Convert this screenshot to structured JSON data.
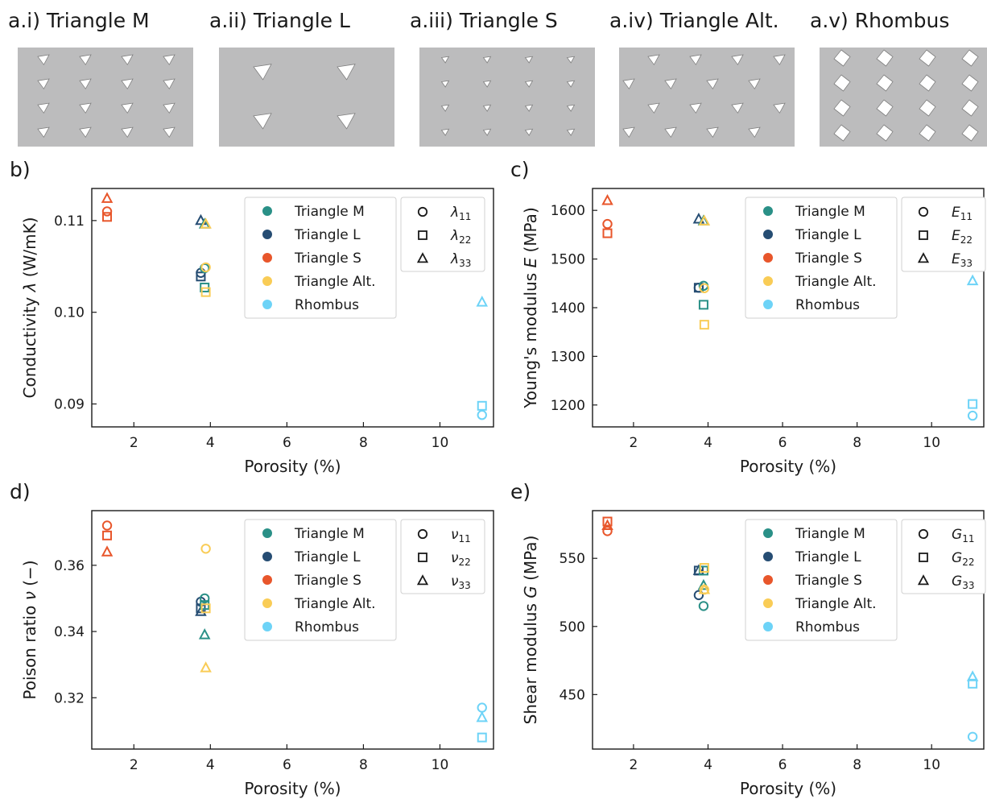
{
  "panels": [
    {
      "label": "a.i) Triangle M",
      "pattern": "tri-m"
    },
    {
      "label": "a.ii) Triangle L",
      "pattern": "tri-l"
    },
    {
      "label": "a.iii) Triangle S",
      "pattern": "tri-s"
    },
    {
      "label": "a.iv) Triangle Alt.",
      "pattern": "tri-alt"
    },
    {
      "label": "a.v) Rhombus",
      "pattern": "rhombus"
    }
  ],
  "colors": {
    "Triangle M": "#2a9087",
    "Triangle L": "#264d73",
    "Triangle S": "#e8562b",
    "Triangle Alt.": "#f9cc56",
    "Rhombus": "#6dd3f7",
    "panel_bg": "#bcbcbd"
  },
  "legend_materials": [
    "Triangle M",
    "Triangle L",
    "Triangle S",
    "Triangle Alt.",
    "Rhombus"
  ],
  "chart_data": [
    {
      "id": "b",
      "type": "scatter",
      "panel_label": "b)",
      "xlabel": "Porosity (%)",
      "ylabel_parts": [
        "Conductivity ",
        "λ",
        " (W/mK)"
      ],
      "xlim": [
        0.9,
        11.4
      ],
      "ylim": [
        0.0875,
        0.1135
      ],
      "xticks": [
        2,
        4,
        6,
        8,
        10
      ],
      "yticks": [
        0.09,
        0.1,
        0.11
      ],
      "ytick_labels": [
        "0.09",
        "0.10",
        "0.11"
      ],
      "component_legend": [
        {
          "symbol": "λ",
          "sub": "11",
          "marker": "circle"
        },
        {
          "symbol": "λ",
          "sub": "22",
          "marker": "square"
        },
        {
          "symbol": "λ",
          "sub": "33",
          "marker": "triangle"
        }
      ],
      "series": [
        {
          "name": "Triangle S",
          "x": 1.3,
          "circle": 0.111,
          "square": 0.1104,
          "triangle": 0.1124
        },
        {
          "name": "Triangle L",
          "x": 3.75,
          "circle": 0.1043,
          "square": 0.1039,
          "triangle": 0.11
        },
        {
          "name": "Triangle M",
          "x": 3.85,
          "circle": 0.1048,
          "square": 0.1027,
          "triangle": 0.1096
        },
        {
          "name": "Triangle Alt.",
          "x": 3.88,
          "circle": 0.1049,
          "square": 0.1022,
          "triangle": 0.1096
        },
        {
          "name": "Rhombus",
          "x": 11.1,
          "circle": 0.0888,
          "square": 0.0898,
          "triangle": 0.1011
        }
      ]
    },
    {
      "id": "c",
      "type": "scatter",
      "panel_label": "c)",
      "xlabel": "Porosity (%)",
      "ylabel_parts": [
        "Young's modulus ",
        "E",
        " (MPa)"
      ],
      "xlim": [
        0.9,
        11.4
      ],
      "ylim": [
        1155,
        1645
      ],
      "xticks": [
        2,
        4,
        6,
        8,
        10
      ],
      "yticks": [
        1200,
        1300,
        1400,
        1500,
        1600
      ],
      "ytick_labels": [
        "1200",
        "1300",
        "1400",
        "1500",
        "1600"
      ],
      "component_legend": [
        {
          "symbol": "E",
          "sub": "11",
          "marker": "circle"
        },
        {
          "symbol": "E",
          "sub": "22",
          "marker": "square"
        },
        {
          "symbol": "E",
          "sub": "33",
          "marker": "triangle"
        }
      ],
      "series": [
        {
          "name": "Triangle S",
          "x": 1.3,
          "circle": 1572,
          "square": 1553,
          "triangle": 1620
        },
        {
          "name": "Triangle L",
          "x": 3.75,
          "circle": 1441,
          "square": 1441,
          "triangle": 1582
        },
        {
          "name": "Triangle M",
          "x": 3.88,
          "circle": 1445,
          "square": 1406,
          "triangle": 1578
        },
        {
          "name": "Triangle Alt.",
          "x": 3.9,
          "circle": 1440,
          "square": 1365,
          "triangle": 1578
        },
        {
          "name": "Rhombus",
          "x": 11.1,
          "circle": 1178,
          "square": 1202,
          "triangle": 1455
        }
      ]
    },
    {
      "id": "d",
      "type": "scatter",
      "panel_label": "d)",
      "xlabel": "Porosity (%)",
      "ylabel_parts": [
        "Poison ratio ",
        "ν",
        " (−)"
      ],
      "xlim": [
        0.9,
        11.4
      ],
      "ylim": [
        0.3045,
        0.3765
      ],
      "xticks": [
        2,
        4,
        6,
        8,
        10
      ],
      "yticks": [
        0.32,
        0.34,
        0.36
      ],
      "ytick_labels": [
        "0.32",
        "0.34",
        "0.36"
      ],
      "component_legend": [
        {
          "symbol": "ν",
          "sub": "11",
          "marker": "circle"
        },
        {
          "symbol": "ν",
          "sub": "22",
          "marker": "square"
        },
        {
          "symbol": "ν",
          "sub": "33",
          "marker": "triangle"
        }
      ],
      "series": [
        {
          "name": "Triangle S",
          "x": 1.3,
          "circle": 0.372,
          "square": 0.369,
          "triangle": 0.364
        },
        {
          "name": "Triangle L",
          "x": 3.75,
          "circle": 0.349,
          "square": 0.347,
          "triangle": 0.346
        },
        {
          "name": "Triangle M",
          "x": 3.85,
          "circle": 0.35,
          "square": 0.348,
          "triangle": 0.339
        },
        {
          "name": "Triangle Alt.",
          "x": 3.88,
          "circle": 0.365,
          "square": 0.347,
          "triangle": 0.329
        },
        {
          "name": "Rhombus",
          "x": 11.1,
          "circle": 0.317,
          "square": 0.308,
          "triangle": 0.314
        }
      ]
    },
    {
      "id": "e",
      "type": "scatter",
      "panel_label": "e)",
      "xlabel": "Porosity (%)",
      "ylabel_parts": [
        "Shear modulus ",
        "G",
        " (MPa)"
      ],
      "xlim": [
        0.9,
        11.4
      ],
      "ylim": [
        410,
        585
      ],
      "xticks": [
        2,
        4,
        6,
        8,
        10
      ],
      "yticks": [
        450,
        500,
        550
      ],
      "ytick_labels": [
        "450",
        "500",
        "550"
      ],
      "component_legend": [
        {
          "symbol": "G",
          "sub": "11",
          "marker": "circle"
        },
        {
          "symbol": "G",
          "sub": "22",
          "marker": "square"
        },
        {
          "symbol": "G",
          "sub": "33",
          "marker": "triangle"
        }
      ],
      "series": [
        {
          "name": "Triangle S",
          "x": 1.3,
          "circle": 570,
          "square": 577,
          "triangle": 574
        },
        {
          "name": "Triangle L",
          "x": 3.75,
          "circle": 523,
          "square": 541,
          "triangle": 541
        },
        {
          "name": "Triangle M",
          "x": 3.88,
          "circle": 515,
          "square": 541,
          "triangle": 530
        },
        {
          "name": "Triangle Alt.",
          "x": 3.9,
          "circle": 527,
          "square": 543,
          "triangle": 527
        },
        {
          "name": "Rhombus",
          "x": 11.1,
          "circle": 419,
          "square": 458,
          "triangle": 463
        }
      ]
    }
  ]
}
